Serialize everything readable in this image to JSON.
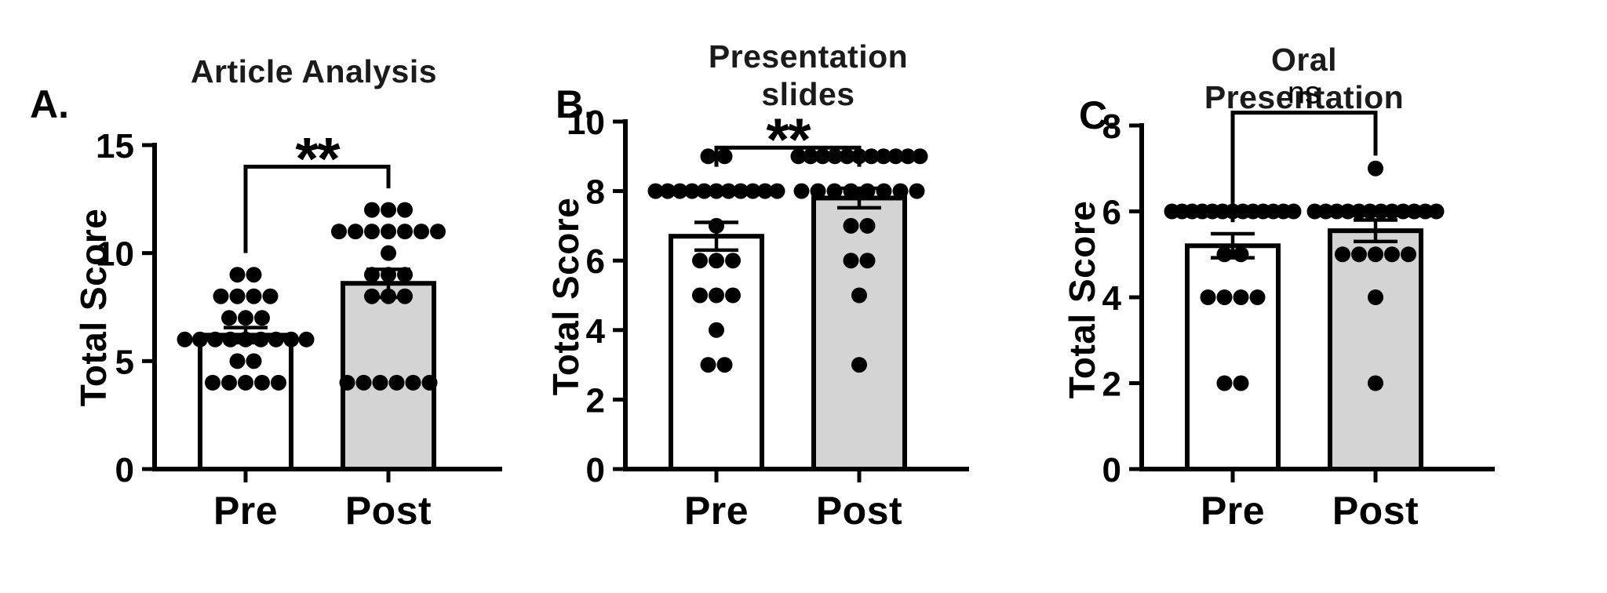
{
  "figure": {
    "background": "#ffffff",
    "ink_color": "#000000",
    "pre_bar_fill": "#ffffff",
    "post_bar_fill": "#d4d4d4"
  },
  "chart_data": [
    {
      "type": "bar",
      "panel_label": "A.",
      "title": "Article Analysis",
      "ylabel": "Total Score",
      "xlabel": "",
      "categories": [
        "Pre",
        "Post"
      ],
      "ylim": [
        0,
        15
      ],
      "yticks": [
        0,
        5,
        10,
        15
      ],
      "grid": false,
      "legend": "none",
      "series": [
        {
          "name": "Pre",
          "mean": 6.2,
          "sem": 0.35,
          "fill": "#ffffff",
          "points": {
            "4": 5,
            "5": 2,
            "6": 9,
            "7": 3,
            "8": 4,
            "9": 2
          }
        },
        {
          "name": "Post",
          "mean": 8.6,
          "sem": 0.65,
          "fill": "#d4d4d4",
          "points": {
            "4": 6,
            "8": 3,
            "9": 3,
            "10": 1,
            "11": 7,
            "12": 3
          }
        }
      ],
      "significance": {
        "label": "**",
        "bar_y": 14.0,
        "left_drop_to": 10.0,
        "right_drop_to": 13.0
      }
    },
    {
      "type": "bar",
      "panel_label": "B.",
      "title": "Presentation\nslides",
      "ylabel": "Total Score",
      "xlabel": "",
      "categories": [
        "Pre",
        "Post"
      ],
      "ylim": [
        0,
        10
      ],
      "yticks": [
        0,
        2,
        4,
        6,
        8,
        10
      ],
      "grid": false,
      "legend": "none",
      "series": [
        {
          "name": "Pre",
          "mean": 6.7,
          "sem": 0.4,
          "fill": "#ffffff",
          "points": {
            "3": 2,
            "4": 1,
            "5": 3,
            "6": 3,
            "7": 1,
            "8": 11,
            "9": 2
          }
        },
        {
          "name": "Post",
          "mean": 7.8,
          "sem": 0.28,
          "fill": "#d4d4d4",
          "points": {
            "3": 1,
            "5": 1,
            "6": 2,
            "7": 2,
            "8": 8,
            "9": 11
          }
        }
      ],
      "significance": {
        "label": "**",
        "bar_y": 9.25,
        "left_drop_to": 8.7,
        "right_drop_to": 8.7
      }
    },
    {
      "type": "bar",
      "panel_label": "C.",
      "title": "Oral\nPresentation",
      "ylabel": "Total Score",
      "xlabel": "",
      "categories": [
        "Pre",
        "Post"
      ],
      "ylim": [
        0,
        8
      ],
      "yticks": [
        0,
        2,
        4,
        6,
        8
      ],
      "grid": false,
      "legend": "none",
      "series": [
        {
          "name": "Pre",
          "mean": 5.2,
          "sem": 0.28,
          "fill": "#ffffff",
          "points": {
            "2": 2,
            "4": 4,
            "5": 2,
            "6": 13
          }
        },
        {
          "name": "Post",
          "mean": 5.55,
          "sem": 0.25,
          "fill": "#d4d4d4",
          "points": {
            "2": 1,
            "4": 1,
            "5": 5,
            "6": 12,
            "7": 1
          }
        }
      ],
      "significance": {
        "label": "ns",
        "bar_y": 8.3,
        "left_drop_to": 5.75,
        "right_drop_to": 7.3
      }
    }
  ]
}
